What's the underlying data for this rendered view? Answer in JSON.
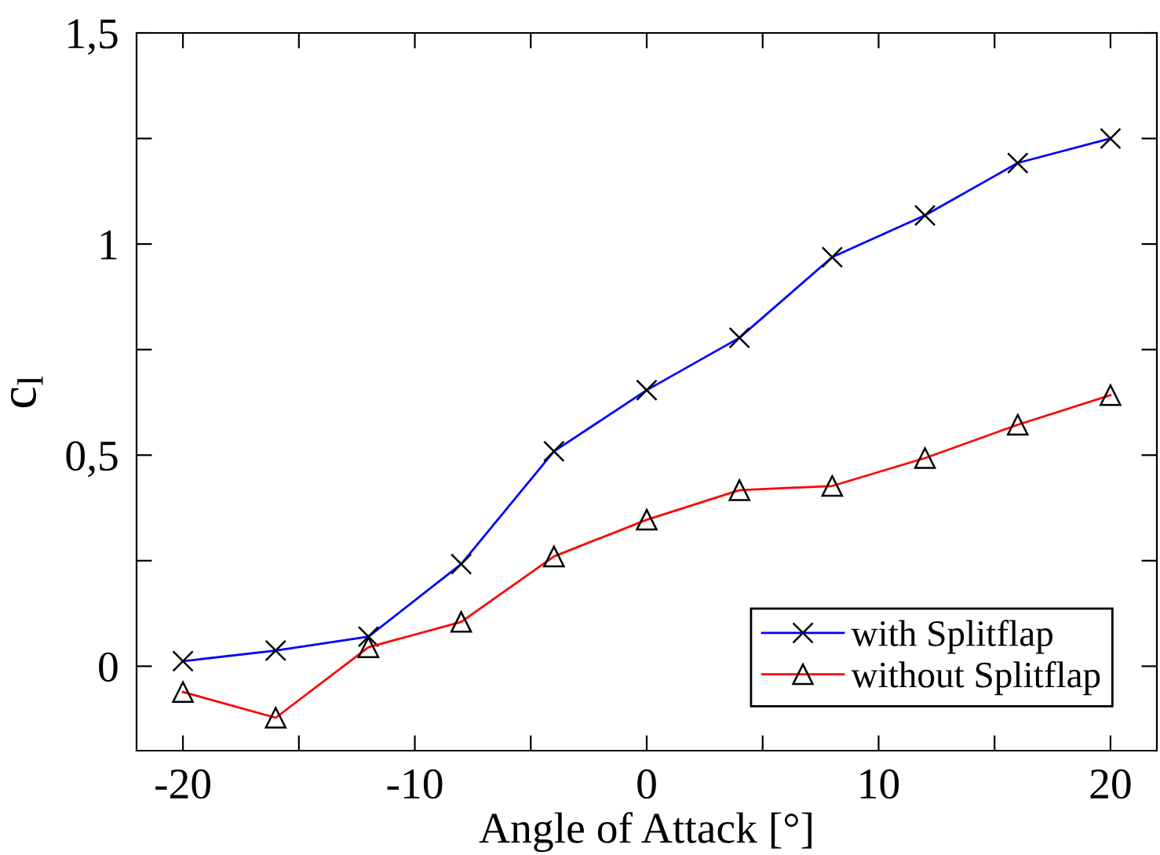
{
  "chart_data": {
    "type": "line",
    "xlabel": "Angle of Attack [°]",
    "ylabel": "c$_{l}$",
    "x": [
      -20,
      -16,
      -12,
      -8,
      -4,
      0,
      4,
      8,
      12,
      16,
      20
    ],
    "series": [
      {
        "name": "with Splitflap",
        "color": "#0000ff",
        "marker": "cross",
        "values": [
          0.012,
          0.037,
          0.07,
          0.242,
          0.509,
          0.654,
          0.778,
          0.969,
          1.068,
          1.192,
          1.25
        ]
      },
      {
        "name": "without Splitflap",
        "color": "#ff0000",
        "marker": "triangle",
        "values": [
          -0.061,
          -0.122,
          0.045,
          0.105,
          0.26,
          0.347,
          0.417,
          0.427,
          0.493,
          0.572,
          0.642
        ]
      }
    ],
    "xlim": [
      -22,
      22
    ],
    "ylim": [
      -0.2,
      1.5
    ],
    "xticks": [
      {
        "value": -20,
        "label": "-20"
      },
      {
        "value": -15,
        "label": null
      },
      {
        "value": -10,
        "label": "-10"
      },
      {
        "value": -5,
        "label": null
      },
      0,
      {
        "value": 5,
        "label": null
      },
      10,
      {
        "value": 15,
        "label": null
      },
      20
    ],
    "yticks": [
      0,
      {
        "value": 0.25,
        "label": null
      },
      {
        "value": 0.5,
        "label": "0,5"
      },
      {
        "value": 0.75,
        "label": null
      },
      1,
      {
        "value": 1.25,
        "label": null
      },
      {
        "value": 1.5,
        "label": "1,5"
      }
    ],
    "grid": false,
    "legend": "bottom right",
    "line_style": "solid"
  }
}
